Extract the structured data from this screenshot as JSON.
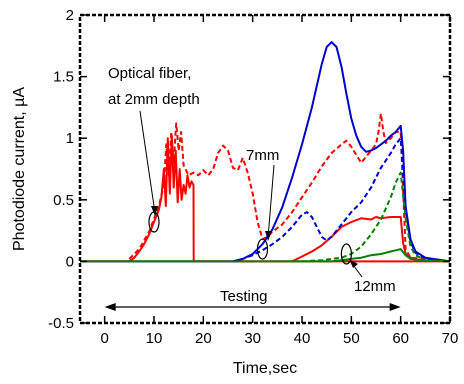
{
  "chart_data": {
    "type": "line",
    "title": "",
    "xlabel": "Time,sec",
    "ylabel": "Photodiode current, µA",
    "xlim": [
      -5,
      70
    ],
    "ylim": [
      -0.5,
      2
    ],
    "x_ticks": [
      0,
      10,
      20,
      30,
      40,
      50,
      60,
      70
    ],
    "y_ticks": [
      -0.5,
      0,
      0.5,
      1,
      1.5,
      2
    ],
    "x_tick_labels": [
      "0",
      "10",
      "20",
      "30",
      "40",
      "50",
      "60",
      "70"
    ],
    "y_tick_labels": [
      "-0.5",
      "0",
      "0.5",
      "1",
      "1.5",
      "2"
    ],
    "grid": false,
    "legend": "none",
    "series": [
      {
        "color": "#ff0000",
        "dash": "solid",
        "points": [
          [
            -5,
            0
          ],
          [
            5,
            0
          ],
          [
            6,
            0.03
          ],
          [
            7,
            0.08
          ],
          [
            8,
            0.14
          ],
          [
            9,
            0.22
          ],
          [
            10,
            0.32
          ],
          [
            11,
            0.42
          ],
          [
            11.5,
            0.52
          ],
          [
            12,
            0.75
          ],
          [
            12.4,
            0.45
          ],
          [
            12.8,
            1.0
          ],
          [
            13.2,
            0.55
          ],
          [
            13.6,
            1.02
          ],
          [
            14,
            0.6
          ],
          [
            14.4,
            0.9
          ],
          [
            14.8,
            0.48
          ],
          [
            15.2,
            0.75
          ],
          [
            15.6,
            0.5
          ],
          [
            16,
            0.62
          ],
          [
            16.4,
            0.55
          ],
          [
            16.8,
            0.7
          ],
          [
            17.2,
            0.6
          ],
          [
            17.6,
            0.65
          ],
          [
            18,
            0.62
          ],
          [
            18.05,
            0
          ],
          [
            70,
            0
          ]
        ]
      },
      {
        "color": "#ff0000",
        "dash": "dash",
        "points": [
          [
            5,
            0.02
          ],
          [
            7,
            0.1
          ],
          [
            9,
            0.24
          ],
          [
            11,
            0.45
          ],
          [
            12,
            0.62
          ],
          [
            12.5,
            0.95
          ],
          [
            13,
            0.7
          ],
          [
            13.5,
            1.05
          ],
          [
            14,
            0.8
          ],
          [
            14.5,
            1.12
          ],
          [
            15,
            0.9
          ],
          [
            15.5,
            1.05
          ],
          [
            16,
            0.78
          ],
          [
            17,
            0.7
          ],
          [
            18,
            0.72
          ],
          [
            19,
            0.7
          ],
          [
            20,
            0.74
          ],
          [
            21,
            0.7
          ],
          [
            22,
            0.75
          ],
          [
            23,
            0.88
          ],
          [
            24,
            0.94
          ],
          [
            25,
            0.9
          ],
          [
            26,
            0.76
          ],
          [
            27,
            0.74
          ],
          [
            28,
            0.84
          ],
          [
            29,
            0.72
          ],
          [
            30,
            0.55
          ],
          [
            31,
            0.32
          ],
          [
            32,
            0.18
          ],
          [
            33,
            0.2
          ],
          [
            34,
            0.24
          ],
          [
            36,
            0.3
          ],
          [
            38,
            0.4
          ],
          [
            40,
            0.52
          ],
          [
            42,
            0.64
          ],
          [
            44,
            0.77
          ],
          [
            46,
            0.88
          ],
          [
            48,
            0.95
          ],
          [
            49,
            0.98
          ],
          [
            50,
            0.93
          ],
          [
            52,
            0.8
          ],
          [
            53,
            0.85
          ],
          [
            54,
            0.9
          ],
          [
            55,
            0.95
          ],
          [
            55.5,
            1.05
          ],
          [
            56,
            1.2
          ],
          [
            56.5,
            1.05
          ],
          [
            57,
            0.96
          ],
          [
            58,
            1.0
          ],
          [
            59,
            1.05
          ],
          [
            60,
            1.05
          ],
          [
            61,
            0.1
          ],
          [
            62,
            0.03
          ],
          [
            70,
            0
          ]
        ]
      },
      {
        "color": "#ff0000",
        "dash": "solid",
        "points": [
          [
            -5,
            0
          ],
          [
            38,
            0
          ],
          [
            40,
            0.04
          ],
          [
            42,
            0.08
          ],
          [
            44,
            0.13
          ],
          [
            46,
            0.2
          ],
          [
            48,
            0.28
          ],
          [
            50,
            0.32
          ],
          [
            52,
            0.35
          ],
          [
            54,
            0.34
          ],
          [
            55,
            0.36
          ],
          [
            56,
            0.35
          ],
          [
            58,
            0.36
          ],
          [
            60,
            0.36
          ],
          [
            60.5,
            0.15
          ],
          [
            61,
            0.06
          ],
          [
            62,
            0.03
          ],
          [
            64,
            0.01
          ],
          [
            70,
            0
          ]
        ]
      },
      {
        "color": "#0000cc",
        "dash": "solid",
        "points": [
          [
            -5,
            0
          ],
          [
            26,
            0
          ],
          [
            28,
            0.02
          ],
          [
            30,
            0.06
          ],
          [
            32,
            0.14
          ],
          [
            34,
            0.26
          ],
          [
            36,
            0.44
          ],
          [
            38,
            0.68
          ],
          [
            40,
            0.95
          ],
          [
            42,
            1.25
          ],
          [
            44,
            1.6
          ],
          [
            45,
            1.74
          ],
          [
            46,
            1.78
          ],
          [
            47,
            1.74
          ],
          [
            48,
            1.58
          ],
          [
            49,
            1.36
          ],
          [
            50,
            1.16
          ],
          [
            51,
            1.02
          ],
          [
            52,
            0.93
          ],
          [
            53,
            0.89
          ],
          [
            54,
            0.9
          ],
          [
            55,
            0.92
          ],
          [
            56,
            0.95
          ],
          [
            57,
            0.98
          ],
          [
            58,
            1.02
          ],
          [
            59,
            1.05
          ],
          [
            60,
            1.1
          ],
          [
            60.5,
            0.9
          ],
          [
            61,
            0.45
          ],
          [
            62,
            0.18
          ],
          [
            63,
            0.08
          ],
          [
            65,
            0.03
          ],
          [
            70,
            0
          ]
        ]
      },
      {
        "color": "#0000cc",
        "dash": "dash",
        "points": [
          [
            26,
            0
          ],
          [
            28,
            0.02
          ],
          [
            30,
            0.05
          ],
          [
            32,
            0.09
          ],
          [
            34,
            0.14
          ],
          [
            36,
            0.2
          ],
          [
            38,
            0.28
          ],
          [
            40,
            0.38
          ],
          [
            41,
            0.4
          ],
          [
            42,
            0.36
          ],
          [
            43,
            0.28
          ],
          [
            44,
            0.2
          ],
          [
            45,
            0.17
          ],
          [
            46,
            0.2
          ],
          [
            48,
            0.3
          ],
          [
            50,
            0.4
          ],
          [
            52,
            0.48
          ],
          [
            54,
            0.6
          ],
          [
            55,
            0.68
          ],
          [
            56,
            0.76
          ],
          [
            57,
            0.82
          ],
          [
            58,
            0.88
          ],
          [
            59,
            0.95
          ],
          [
            60,
            1.0
          ],
          [
            61,
            0.42
          ],
          [
            62,
            0.16
          ],
          [
            63,
            0.07
          ],
          [
            65,
            0.02
          ],
          [
            70,
            0
          ]
        ]
      },
      {
        "color": "#008000",
        "dash": "dash",
        "points": [
          [
            40,
            0
          ],
          [
            44,
            0.01
          ],
          [
            48,
            0.03
          ],
          [
            50,
            0.06
          ],
          [
            52,
            0.12
          ],
          [
            54,
            0.22
          ],
          [
            56,
            0.34
          ],
          [
            58,
            0.52
          ],
          [
            59,
            0.64
          ],
          [
            60,
            0.72
          ],
          [
            61,
            0.35
          ],
          [
            62,
            0.12
          ],
          [
            63,
            0.05
          ],
          [
            65,
            0.01
          ],
          [
            70,
            0
          ]
        ]
      },
      {
        "color": "#008000",
        "dash": "solid",
        "points": [
          [
            -5,
            0
          ],
          [
            46,
            0
          ],
          [
            48,
            0.01
          ],
          [
            50,
            0.02
          ],
          [
            52,
            0.03
          ],
          [
            54,
            0.05
          ],
          [
            56,
            0.06
          ],
          [
            58,
            0.08
          ],
          [
            59,
            0.09
          ],
          [
            60,
            0.1
          ],
          [
            61,
            0.05
          ],
          [
            62,
            0.02
          ],
          [
            64,
            0.01
          ],
          [
            70,
            0
          ]
        ]
      }
    ],
    "annotations": {
      "fiber_line1": "Optical fiber,",
      "fiber_line2": "at 2mm depth",
      "depth_7": "7mm",
      "depth_12": "12mm",
      "testing": "Testing"
    },
    "testing_range": [
      0,
      60
    ],
    "markers": [
      {
        "x": 10,
        "y": 0.32
      },
      {
        "x": 32,
        "y": 0.1
      },
      {
        "x": 49,
        "y": 0.06
      }
    ]
  }
}
